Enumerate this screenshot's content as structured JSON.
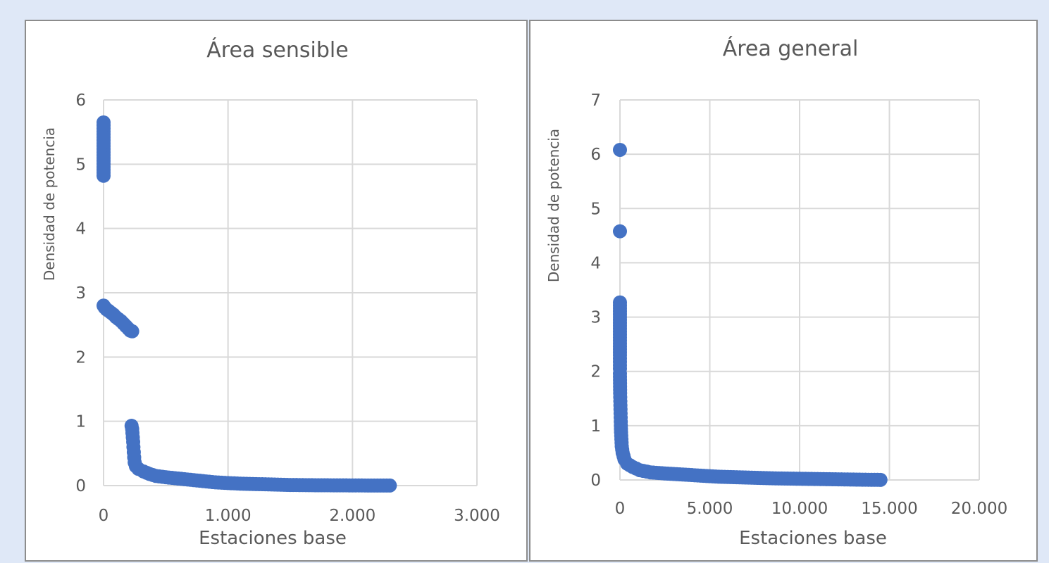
{
  "colors": {
    "marker": "#4472c4",
    "grid": "#d9d9d9",
    "text": "#595959"
  },
  "chart_data": [
    {
      "type": "scatter",
      "title": "Área sensible",
      "xlabel": "Estaciones base",
      "ylabel": "Densidad de potencia",
      "xlim": [
        0,
        3000
      ],
      "ylim": [
        0,
        6
      ],
      "xtick_labels": [
        "0",
        "1.000",
        "2.000",
        "3.000"
      ],
      "ytick_labels": [
        "0",
        "1",
        "2",
        "3",
        "4",
        "5",
        "6"
      ],
      "grid": true,
      "points": [
        [
          0,
          5.65
        ],
        [
          0,
          4.82
        ],
        [
          0,
          2.8
        ],
        [
          10,
          2.77
        ],
        [
          25,
          2.74
        ],
        [
          40,
          2.72
        ],
        [
          60,
          2.69
        ],
        [
          80,
          2.66
        ],
        [
          100,
          2.62
        ],
        [
          120,
          2.59
        ],
        [
          140,
          2.56
        ],
        [
          160,
          2.52
        ],
        [
          180,
          2.48
        ],
        [
          200,
          2.44
        ],
        [
          215,
          2.41
        ],
        [
          230,
          2.4
        ],
        [
          225,
          0.93
        ],
        [
          230,
          0.88
        ],
        [
          232,
          0.82
        ],
        [
          235,
          0.75
        ],
        [
          238,
          0.68
        ],
        [
          240,
          0.6
        ],
        [
          243,
          0.52
        ],
        [
          246,
          0.44
        ],
        [
          250,
          0.36
        ],
        [
          260,
          0.3
        ],
        [
          280,
          0.26
        ],
        [
          320,
          0.22
        ],
        [
          370,
          0.18
        ],
        [
          420,
          0.15
        ],
        [
          500,
          0.13
        ],
        [
          600,
          0.11
        ],
        [
          700,
          0.09
        ],
        [
          800,
          0.07
        ],
        [
          900,
          0.05
        ],
        [
          1000,
          0.04
        ],
        [
          1100,
          0.03
        ],
        [
          1200,
          0.025
        ],
        [
          1300,
          0.02
        ],
        [
          1400,
          0.015
        ],
        [
          1500,
          0.01
        ],
        [
          1600,
          0.008
        ],
        [
          1700,
          0.006
        ],
        [
          1800,
          0.005
        ],
        [
          1900,
          0.004
        ],
        [
          2000,
          0.003
        ],
        [
          2100,
          0.002
        ],
        [
          2200,
          0.001
        ],
        [
          2300,
          0.001
        ]
      ]
    },
    {
      "type": "scatter",
      "title": "Área general",
      "xlabel": "Estaciones base",
      "ylabel": "Densidad de potencia",
      "xlim": [
        0,
        20000
      ],
      "ylim": [
        0,
        7
      ],
      "xtick_labels": [
        "0",
        "5.000",
        "10.000",
        "15.000",
        "20.000"
      ],
      "ytick_labels": [
        "0",
        "1",
        "2",
        "3",
        "4",
        "5",
        "6",
        "7"
      ],
      "grid": true,
      "points": [
        [
          0,
          6.08
        ],
        [
          0,
          4.58
        ],
        [
          0,
          3.27
        ],
        [
          0,
          2.3
        ],
        [
          0,
          2.05
        ],
        [
          0,
          1.96
        ],
        [
          10,
          1.6
        ],
        [
          20,
          1.45
        ],
        [
          30,
          1.3
        ],
        [
          40,
          1.15
        ],
        [
          50,
          1.0
        ],
        [
          60,
          0.88
        ],
        [
          80,
          0.75
        ],
        [
          100,
          0.62
        ],
        [
          150,
          0.5
        ],
        [
          250,
          0.38
        ],
        [
          400,
          0.3
        ],
        [
          700,
          0.24
        ],
        [
          1100,
          0.18
        ],
        [
          1700,
          0.14
        ],
        [
          2500,
          0.12
        ],
        [
          3500,
          0.1
        ],
        [
          4500,
          0.08
        ],
        [
          5500,
          0.06
        ],
        [
          6500,
          0.05
        ],
        [
          7500,
          0.04
        ],
        [
          8500,
          0.03
        ],
        [
          9500,
          0.025
        ],
        [
          10500,
          0.02
        ],
        [
          11500,
          0.015
        ],
        [
          12500,
          0.01
        ],
        [
          13500,
          0.005
        ],
        [
          14500,
          0.002
        ]
      ]
    }
  ]
}
